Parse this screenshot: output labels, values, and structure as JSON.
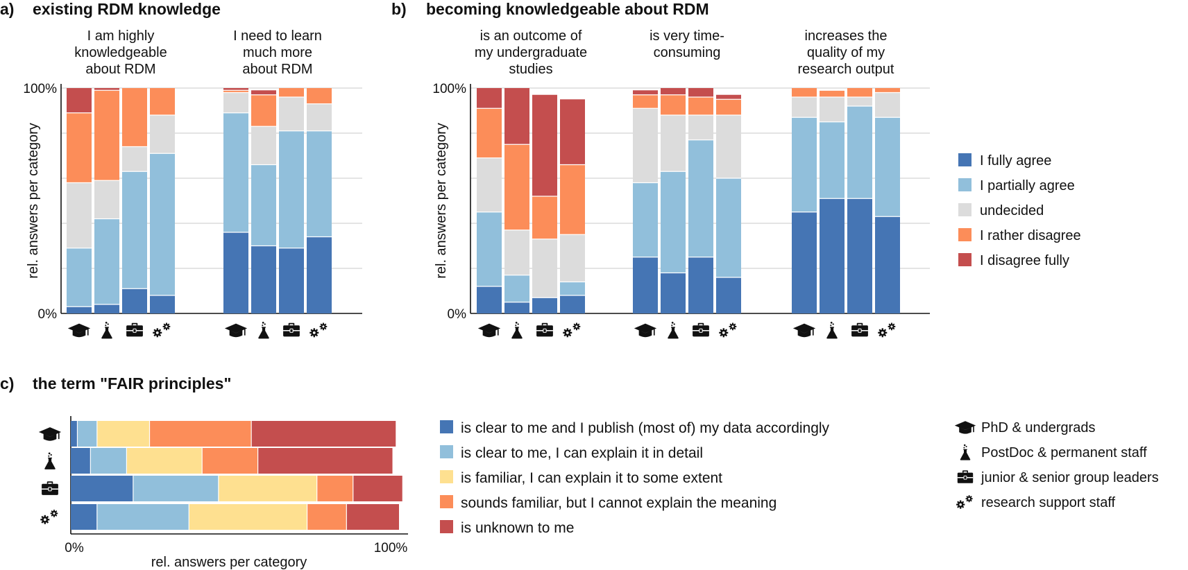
{
  "panels": {
    "a": {
      "letter": "a)",
      "title": "existing RDM knowledge"
    },
    "b": {
      "letter": "b)",
      "title": "becoming knowledgeable about RDM"
    },
    "c": {
      "letter": "c)",
      "title": "the term \"FAIR principles\""
    }
  },
  "colors": {
    "fully_agree": "#4575b4",
    "partially_agree": "#91bfdb",
    "undecided": "#dcdcdc",
    "rather_disagree": "#fc8d59",
    "disagree_fully": "#c44e4e",
    "familiar": "#fee090"
  },
  "groups": [
    {
      "key": "phd",
      "icon": "graduation-cap-icon",
      "label": "PhD & undergrads"
    },
    {
      "key": "postdoc",
      "icon": "flask-icon",
      "label": "PostDoc & permanent staff"
    },
    {
      "key": "leaders",
      "icon": "briefcase-icon",
      "label": "junior & senior group leaders"
    },
    {
      "key": "support",
      "icon": "gears-icon",
      "label": "research support staff"
    }
  ],
  "likert_legend": [
    "I fully agree",
    "I partially agree",
    "undecided",
    "I rather disagree",
    "I disagree fully"
  ],
  "fair_legend": [
    "is clear to me and I publish (most of) my data accordingly",
    "is clear to me, I can explain it in detail",
    "is familiar, I can explain it to some extent",
    "sounds familiar, but I cannot explain the meaning",
    "is unknown to me"
  ],
  "axis": {
    "y_label": "rel. answers per category",
    "y_top": "100%",
    "y_bottom": "0%",
    "x_label": "rel. answers per category",
    "x_left": "0%",
    "x_right": "100%"
  },
  "chart_data": [
    {
      "panel": "a",
      "type": "bar",
      "stacked": true,
      "ylim": [
        0,
        100
      ],
      "ylabel": "rel. answers per category",
      "grid": true,
      "categories": [
        "PhD & undergrads",
        "PostDoc & permanent staff",
        "junior & senior group leaders",
        "research support staff"
      ],
      "series_order": [
        "I fully agree",
        "I partially agree",
        "undecided",
        "I rather disagree",
        "I disagree fully"
      ],
      "groups": [
        {
          "title": [
            "I am highly",
            "knowledgeable",
            "about RDM"
          ],
          "bars": [
            [
              3,
              26,
              29,
              31,
              11
            ],
            [
              4,
              38,
              17,
              40,
              1
            ],
            [
              11,
              52,
              11,
              26,
              0
            ],
            [
              8,
              63,
              17,
              12,
              0
            ]
          ]
        },
        {
          "title": [
            "I need to learn",
            "much more",
            "about RDM"
          ],
          "bars": [
            [
              36,
              53,
              9,
              1,
              1
            ],
            [
              30,
              36,
              17,
              14,
              2
            ],
            [
              29,
              52,
              15,
              4,
              0
            ],
            [
              34,
              47,
              12,
              7,
              0
            ]
          ]
        }
      ]
    },
    {
      "panel": "b",
      "type": "bar",
      "stacked": true,
      "ylim": [
        0,
        100
      ],
      "ylabel": "rel. answers per category",
      "grid": true,
      "categories": [
        "PhD & undergrads",
        "PostDoc & permanent staff",
        "junior & senior group leaders",
        "research support staff"
      ],
      "series_order": [
        "I fully agree",
        "I partially agree",
        "undecided",
        "I rather disagree",
        "I disagree fully"
      ],
      "groups": [
        {
          "title": [
            "is an outcome of",
            "my undergraduate",
            "studies"
          ],
          "bars": [
            [
              12,
              33,
              24,
              22,
              9
            ],
            [
              5,
              12,
              20,
              38,
              25
            ],
            [
              7,
              0,
              26,
              19,
              45
            ],
            [
              8,
              6,
              21,
              31,
              29
            ]
          ]
        },
        {
          "title": [
            "is very time-",
            "consuming"
          ],
          "bars": [
            [
              25,
              33,
              33,
              6,
              2
            ],
            [
              18,
              45,
              25,
              9,
              3
            ],
            [
              25,
              52,
              11,
              8,
              4
            ],
            [
              16,
              44,
              28,
              7,
              2
            ]
          ]
        },
        {
          "title": [
            "increases the",
            "quality of my",
            "research output"
          ],
          "bars": [
            [
              45,
              42,
              9,
              4,
              0
            ],
            [
              51,
              34,
              11,
              3,
              0
            ],
            [
              51,
              41,
              4,
              4,
              0
            ],
            [
              43,
              44,
              11,
              2,
              0
            ]
          ]
        }
      ]
    },
    {
      "panel": "c",
      "type": "bar",
      "orientation": "horizontal",
      "stacked": true,
      "xlim": [
        0,
        100
      ],
      "xlabel": "rel. answers per category",
      "categories": [
        "PhD & undergrads",
        "PostDoc & permanent staff",
        "junior & senior group leaders",
        "research support staff"
      ],
      "series_order": [
        "is clear to me and I publish (most of) my data accordingly",
        "is clear to me, I can explain it in detail",
        "is familiar, I can explain it to some extent",
        "sounds familiar, but I cannot explain the meaning",
        "is unknown to me"
      ],
      "bars": [
        [
          2,
          6,
          16,
          31,
          44
        ],
        [
          6,
          11,
          23,
          17,
          41
        ],
        [
          19,
          26,
          30,
          11,
          15
        ],
        [
          8,
          28,
          36,
          12,
          16
        ]
      ]
    }
  ]
}
